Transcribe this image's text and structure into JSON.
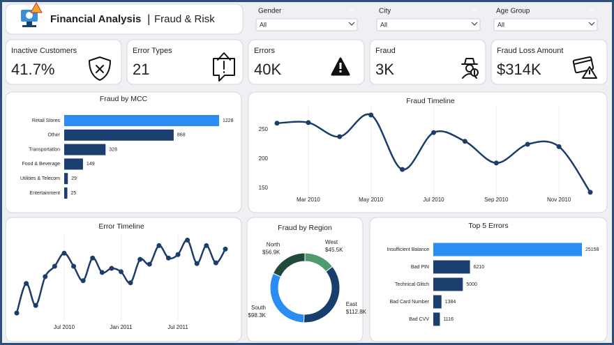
{
  "header": {
    "title": "Financial Analysis",
    "separator": "|",
    "subtitle": "Fraud & Risk"
  },
  "filters": [
    {
      "label": "Gender",
      "value": "All"
    },
    {
      "label": "City",
      "value": "All"
    },
    {
      "label": "Age Group",
      "value": "All"
    }
  ],
  "kpis": [
    {
      "label": "Inactive Customers",
      "value": "41.7%"
    },
    {
      "label": "Error Types",
      "value": "21"
    },
    {
      "label": "Errors",
      "value": "40K"
    },
    {
      "label": "Fraud",
      "value": "3K"
    },
    {
      "label": "Fraud Loss Amount",
      "value": "$314K"
    }
  ],
  "chart_data": [
    {
      "type": "bar",
      "orientation": "horizontal",
      "title": "Fraud by MCC",
      "categories": [
        "Retail Stores",
        "Other",
        "Transportation",
        "Food & Beverage",
        "Utilities & Telecom",
        "Entertainment"
      ],
      "values": [
        1228,
        868,
        328,
        149,
        29,
        25
      ],
      "colors": [
        "#2b8cf2",
        "#1b3f6e",
        "#1b3f6e",
        "#1b3f6e",
        "#1b3f6e",
        "#1b3f6e"
      ]
    },
    {
      "type": "line",
      "title": "Fraud Timeline",
      "categories": [
        null,
        "Mar 2010",
        null,
        "May 2010",
        null,
        "Jul 2010",
        null,
        "Sep 2010",
        null,
        "Nov 2010",
        null
      ],
      "values": [
        261,
        262,
        238,
        275,
        182,
        245,
        230,
        193,
        225,
        221,
        143
      ],
      "color": "#1c3d6b",
      "ylim": [
        135,
        290
      ],
      "yticks": [
        150,
        200,
        250
      ]
    },
    {
      "type": "line",
      "title": "Error Timeline",
      "categories": [
        null,
        null,
        null,
        null,
        null,
        "Jul 2010",
        null,
        null,
        null,
        null,
        null,
        "Jan 2011",
        null,
        null,
        null,
        null,
        null,
        "Jul 2011",
        null,
        null,
        null,
        null,
        null
      ],
      "values": [
        965,
        1610,
        1130,
        1760,
        1985,
        2270,
        1985,
        1670,
        2165,
        1850,
        1940,
        1865,
        1625,
        2135,
        2030,
        2435,
        2165,
        2240,
        2555,
        2045,
        2435,
        2060,
        2360
      ],
      "color": "#1c3d6b",
      "ylim": [
        800,
        2700
      ]
    },
    {
      "type": "donut",
      "title": "Fraud by Region",
      "categories": [
        "West",
        "East",
        "South",
        "North"
      ],
      "values": [
        45.5,
        112.8,
        98.3,
        56.9
      ],
      "value_labels": [
        "$45.5K",
        "$112.8K",
        "$98.3K",
        "$56.9K"
      ],
      "colors": [
        "#4f9a6f",
        "#173f6e",
        "#2b8cf2",
        "#1f4a3c"
      ]
    },
    {
      "type": "bar",
      "orientation": "horizontal",
      "title": "Top 5 Errors",
      "categories": [
        "Insufficient Balance",
        "Bad PIN",
        "Technical Glitch",
        "Bad Card Number",
        "Bad CVV"
      ],
      "values": [
        25158,
        6210,
        5000,
        1384,
        1116
      ],
      "colors": [
        "#2b8cf2",
        "#1b3f6e",
        "#1b3f6e",
        "#1b3f6e",
        "#1b3f6e"
      ]
    }
  ]
}
